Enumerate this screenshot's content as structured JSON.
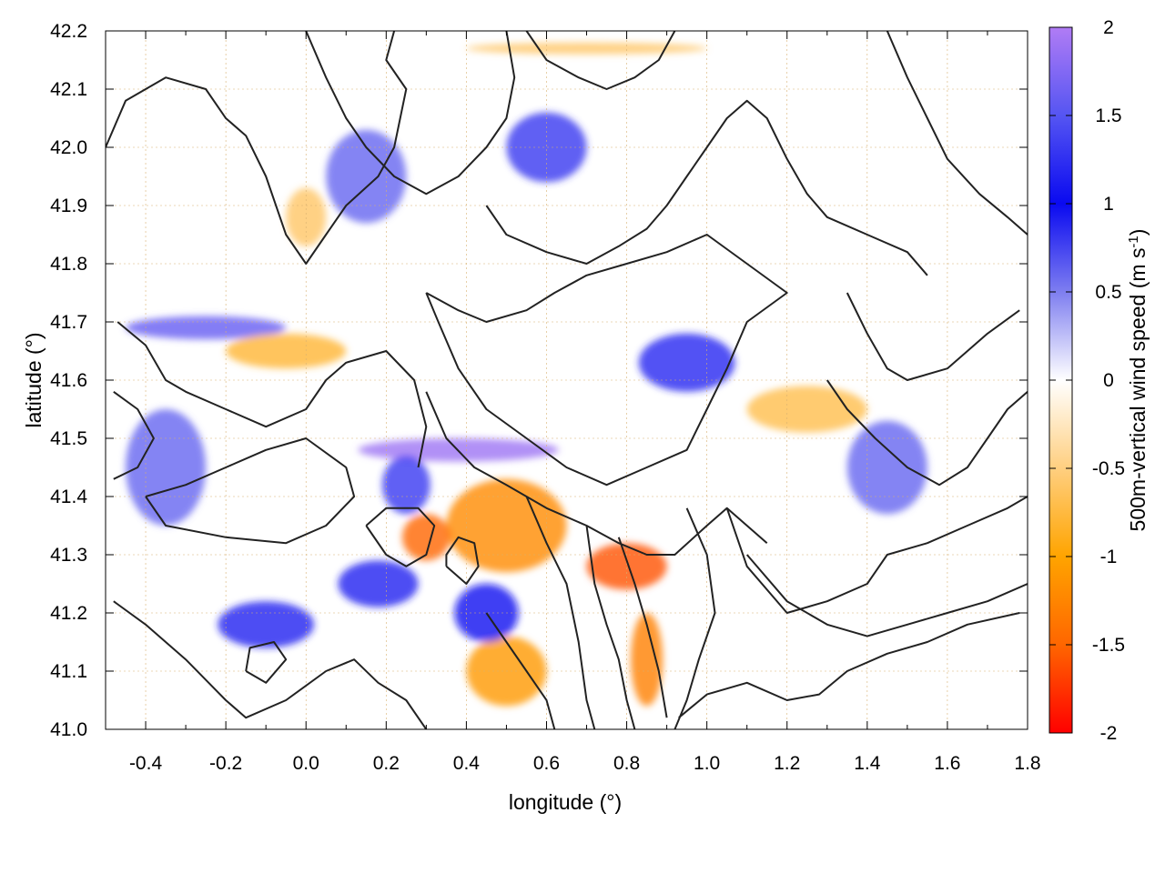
{
  "chart_data": {
    "type": "heatmap",
    "title": "",
    "xlabel": "longitude (°)",
    "ylabel": "latitude (°)",
    "xlim": [
      -0.5,
      1.8
    ],
    "ylim": [
      41.0,
      42.2
    ],
    "x_ticks": [
      "-0.4",
      "-0.2",
      "0.0",
      "0.2",
      "0.4",
      "0.6",
      "0.8",
      "1.0",
      "1.2",
      "1.4",
      "1.6",
      "1.8"
    ],
    "x_tick_values": [
      -0.4,
      -0.2,
      0.0,
      0.2,
      0.4,
      0.6,
      0.8,
      1.0,
      1.2,
      1.4,
      1.6,
      1.8
    ],
    "y_ticks": [
      "41.0",
      "41.1",
      "41.2",
      "41.3",
      "41.4",
      "41.5",
      "41.6",
      "41.7",
      "41.8",
      "41.9",
      "42.0",
      "42.1",
      "42.2"
    ],
    "y_tick_values": [
      41.0,
      41.1,
      41.2,
      41.3,
      41.4,
      41.5,
      41.6,
      41.7,
      41.8,
      41.9,
      42.0,
      42.1,
      42.2
    ],
    "grid": true,
    "colorbar": {
      "label_main": "500m-vertical wind speed (m s",
      "label_sup": "-1",
      "label_end": ")",
      "range": [
        -2,
        2
      ],
      "ticks": [
        "2",
        "1.5",
        "1",
        "0.5",
        "0",
        "-0.5",
        "-1",
        "-1.5",
        "-2"
      ],
      "tick_values": [
        2,
        1.5,
        1,
        0.5,
        0,
        -0.5,
        -1,
        -1.5,
        -2
      ],
      "stops": [
        {
          "value": 2,
          "color": "#b07cf5"
        },
        {
          "value": 1.5,
          "color": "#5555f2"
        },
        {
          "value": 1,
          "color": "#0a0af0"
        },
        {
          "value": 0.5,
          "color": "#7e7ef0"
        },
        {
          "value": 0,
          "color": "#ffffff"
        },
        {
          "value": -0.5,
          "color": "#ffcf80"
        },
        {
          "value": -1,
          "color": "#ffa400"
        },
        {
          "value": -1.5,
          "color": "#ff6600"
        },
        {
          "value": -2,
          "color": "#ff0000"
        }
      ]
    },
    "anomalies": [
      {
        "lon": 0.38,
        "lat": 41.48,
        "value": 1.9,
        "rlon": 0.25,
        "rlat": 0.02
      },
      {
        "lon": -0.25,
        "lat": 41.69,
        "value": 1.6,
        "rlon": 0.2,
        "rlat": 0.02
      },
      {
        "lon": 0.95,
        "lat": 41.63,
        "value": 1.2,
        "rlon": 0.12,
        "rlat": 0.05
      },
      {
        "lon": 0.5,
        "lat": 41.35,
        "value": -1.2,
        "rlon": 0.15,
        "rlat": 0.08
      },
      {
        "lon": 0.3,
        "lat": 41.33,
        "value": -1.5,
        "rlon": 0.06,
        "rlat": 0.04
      },
      {
        "lon": 0.25,
        "lat": 41.42,
        "value": 1.3,
        "rlon": 0.06,
        "rlat": 0.05
      },
      {
        "lon": 0.8,
        "lat": 41.28,
        "value": -1.6,
        "rlon": 0.1,
        "rlat": 0.04
      },
      {
        "lon": 0.85,
        "lat": 41.12,
        "value": -1.3,
        "rlon": 0.04,
        "rlat": 0.08
      },
      {
        "lon": 0.5,
        "lat": 41.1,
        "value": -1.1,
        "rlon": 0.1,
        "rlat": 0.06
      },
      {
        "lon": 0.45,
        "lat": 41.2,
        "value": 1.0,
        "rlon": 0.08,
        "rlat": 0.05
      },
      {
        "lon": 0.18,
        "lat": 41.25,
        "value": 0.9,
        "rlon": 0.1,
        "rlat": 0.04
      },
      {
        "lon": -0.1,
        "lat": 41.18,
        "value": 0.9,
        "rlon": 0.12,
        "rlat": 0.04
      },
      {
        "lon": -0.35,
        "lat": 41.45,
        "value": 0.6,
        "rlon": 0.1,
        "rlat": 0.1
      },
      {
        "lon": 1.25,
        "lat": 41.55,
        "value": -0.7,
        "rlon": 0.15,
        "rlat": 0.04
      },
      {
        "lon": 1.45,
        "lat": 41.45,
        "value": 0.6,
        "rlon": 0.1,
        "rlat": 0.08
      },
      {
        "lon": 0.6,
        "lat": 42.0,
        "value": 0.8,
        "rlon": 0.1,
        "rlat": 0.06
      },
      {
        "lon": 0.15,
        "lat": 41.95,
        "value": 0.6,
        "rlon": 0.1,
        "rlat": 0.08
      },
      {
        "lon": 0.7,
        "lat": 42.17,
        "value": -0.6,
        "rlon": 0.3,
        "rlat": 0.01
      },
      {
        "lon": -0.05,
        "lat": 41.65,
        "value": -0.8,
        "rlon": 0.15,
        "rlat": 0.03
      },
      {
        "lon": 0.0,
        "lat": 41.88,
        "value": -0.6,
        "rlon": 0.05,
        "rlat": 0.05
      }
    ],
    "contours": [
      [
        [
          -0.5,
          42.0
        ],
        [
          -0.45,
          42.08
        ],
        [
          -0.35,
          42.12
        ],
        [
          -0.25,
          42.1
        ],
        [
          -0.2,
          42.05
        ],
        [
          -0.15,
          42.02
        ],
        [
          -0.1,
          41.95
        ],
        [
          -0.05,
          41.85
        ],
        [
          0.0,
          41.8
        ],
        [
          0.05,
          41.85
        ],
        [
          0.1,
          41.9
        ],
        [
          0.18,
          41.95
        ],
        [
          0.22,
          42.0
        ],
        [
          0.25,
          42.1
        ],
        [
          0.2,
          42.15
        ],
        [
          0.22,
          42.2
        ]
      ],
      [
        [
          -0.47,
          41.7
        ],
        [
          -0.4,
          41.66
        ],
        [
          -0.35,
          41.6
        ],
        [
          -0.3,
          41.58
        ],
        [
          -0.2,
          41.55
        ],
        [
          -0.1,
          41.52
        ],
        [
          0.0,
          41.55
        ],
        [
          0.05,
          41.6
        ],
        [
          0.1,
          41.63
        ],
        [
          0.2,
          41.65
        ],
        [
          0.27,
          41.6
        ],
        [
          0.3,
          41.52
        ],
        [
          0.28,
          41.45
        ]
      ],
      [
        [
          -0.4,
          41.4
        ],
        [
          -0.35,
          41.35
        ],
        [
          -0.2,
          41.33
        ],
        [
          -0.05,
          41.32
        ],
        [
          0.05,
          41.35
        ],
        [
          0.12,
          41.4
        ],
        [
          0.1,
          41.45
        ],
        [
          0.0,
          41.5
        ],
        [
          -0.1,
          41.48
        ],
        [
          -0.2,
          41.45
        ],
        [
          -0.3,
          41.42
        ],
        [
          -0.4,
          41.4
        ]
      ],
      [
        [
          -0.48,
          41.22
        ],
        [
          -0.4,
          41.18
        ],
        [
          -0.3,
          41.12
        ],
        [
          -0.2,
          41.05
        ],
        [
          -0.15,
          41.02
        ],
        [
          -0.05,
          41.05
        ],
        [
          0.05,
          41.1
        ],
        [
          0.12,
          41.12
        ],
        [
          0.18,
          41.08
        ],
        [
          0.25,
          41.05
        ],
        [
          0.3,
          41.0
        ]
      ],
      [
        [
          0.3,
          41.58
        ],
        [
          0.35,
          41.5
        ],
        [
          0.42,
          41.45
        ],
        [
          0.5,
          41.42
        ],
        [
          0.6,
          41.38
        ],
        [
          0.7,
          41.35
        ],
        [
          0.78,
          41.32
        ],
        [
          0.85,
          41.3
        ],
        [
          0.92,
          41.3
        ],
        [
          1.0,
          41.35
        ],
        [
          1.05,
          41.38
        ],
        [
          1.1,
          41.35
        ],
        [
          1.15,
          41.32
        ]
      ],
      [
        [
          0.3,
          41.75
        ],
        [
          0.38,
          41.72
        ],
        [
          0.45,
          41.7
        ],
        [
          0.55,
          41.72
        ],
        [
          0.62,
          41.75
        ],
        [
          0.7,
          41.78
        ],
        [
          0.8,
          41.8
        ],
        [
          0.9,
          41.82
        ],
        [
          1.0,
          41.85
        ],
        [
          1.1,
          41.8
        ],
        [
          1.2,
          41.75
        ],
        [
          1.1,
          41.7
        ],
        [
          1.05,
          41.62
        ],
        [
          1.0,
          41.55
        ],
        [
          0.95,
          41.48
        ],
        [
          0.85,
          41.45
        ],
        [
          0.75,
          41.42
        ],
        [
          0.65,
          41.45
        ],
        [
          0.55,
          41.5
        ],
        [
          0.45,
          41.55
        ],
        [
          0.38,
          41.62
        ],
        [
          0.33,
          41.7
        ],
        [
          0.3,
          41.75
        ]
      ],
      [
        [
          0.45,
          41.9
        ],
        [
          0.5,
          41.85
        ],
        [
          0.6,
          41.82
        ],
        [
          0.7,
          41.8
        ],
        [
          0.78,
          41.83
        ],
        [
          0.85,
          41.86
        ],
        [
          0.9,
          41.9
        ],
        [
          0.95,
          41.95
        ],
        [
          1.0,
          42.0
        ],
        [
          1.05,
          42.05
        ],
        [
          1.1,
          42.08
        ],
        [
          1.15,
          42.05
        ],
        [
          1.2,
          41.98
        ],
        [
          1.25,
          41.92
        ],
        [
          1.3,
          41.88
        ],
        [
          1.4,
          41.85
        ],
        [
          1.5,
          41.82
        ],
        [
          1.55,
          41.78
        ]
      ],
      [
        [
          0.55,
          42.2
        ],
        [
          0.6,
          42.15
        ],
        [
          0.68,
          42.12
        ],
        [
          0.75,
          42.1
        ],
        [
          0.82,
          42.12
        ],
        [
          0.88,
          42.15
        ],
        [
          0.92,
          42.2
        ]
      ],
      [
        [
          0.7,
          41.35
        ],
        [
          0.72,
          41.25
        ],
        [
          0.75,
          41.18
        ],
        [
          0.78,
          41.12
        ],
        [
          0.8,
          41.05
        ],
        [
          0.82,
          41.0
        ]
      ],
      [
        [
          0.78,
          41.33
        ],
        [
          0.82,
          41.25
        ],
        [
          0.85,
          41.18
        ],
        [
          0.88,
          41.1
        ],
        [
          0.9,
          41.02
        ]
      ],
      [
        [
          0.95,
          41.38
        ],
        [
          1.0,
          41.3
        ],
        [
          1.02,
          41.2
        ],
        [
          0.98,
          41.12
        ],
        [
          0.95,
          41.05
        ],
        [
          0.92,
          41.0
        ]
      ],
      [
        [
          1.05,
          41.38
        ],
        [
          1.1,
          41.28
        ],
        [
          1.2,
          41.2
        ],
        [
          1.3,
          41.22
        ],
        [
          1.4,
          41.25
        ],
        [
          1.45,
          41.3
        ],
        [
          1.55,
          41.32
        ],
        [
          1.65,
          41.35
        ],
        [
          1.75,
          41.38
        ],
        [
          1.8,
          41.4
        ]
      ],
      [
        [
          1.1,
          41.3
        ],
        [
          1.2,
          41.22
        ],
        [
          1.3,
          41.18
        ],
        [
          1.4,
          41.16
        ],
        [
          1.5,
          41.18
        ],
        [
          1.6,
          41.2
        ],
        [
          1.7,
          41.22
        ],
        [
          1.8,
          41.25
        ]
      ],
      [
        [
          0.93,
          41.02
        ],
        [
          1.0,
          41.06
        ],
        [
          1.1,
          41.08
        ],
        [
          1.2,
          41.05
        ],
        [
          1.28,
          41.06
        ],
        [
          1.35,
          41.1
        ],
        [
          1.45,
          41.13
        ],
        [
          1.55,
          41.15
        ],
        [
          1.65,
          41.18
        ],
        [
          1.78,
          41.2
        ]
      ],
      [
        [
          1.3,
          41.6
        ],
        [
          1.35,
          41.55
        ],
        [
          1.42,
          41.5
        ],
        [
          1.5,
          41.45
        ],
        [
          1.58,
          41.42
        ],
        [
          1.65,
          41.45
        ],
        [
          1.7,
          41.5
        ],
        [
          1.75,
          41.55
        ],
        [
          1.8,
          41.58
        ]
      ],
      [
        [
          1.35,
          41.75
        ],
        [
          1.4,
          41.68
        ],
        [
          1.45,
          41.62
        ],
        [
          1.5,
          41.6
        ],
        [
          1.6,
          41.62
        ],
        [
          1.7,
          41.68
        ],
        [
          1.78,
          41.72
        ]
      ],
      [
        [
          1.45,
          42.2
        ],
        [
          1.5,
          42.12
        ],
        [
          1.55,
          42.05
        ],
        [
          1.6,
          41.98
        ],
        [
          1.68,
          41.92
        ],
        [
          1.75,
          41.88
        ],
        [
          1.8,
          41.85
        ]
      ],
      [
        [
          0.15,
          41.35
        ],
        [
          0.2,
          41.3
        ],
        [
          0.25,
          41.28
        ],
        [
          0.3,
          41.3
        ],
        [
          0.32,
          41.35
        ],
        [
          0.28,
          41.38
        ],
        [
          0.2,
          41.38
        ],
        [
          0.15,
          41.35
        ]
      ],
      [
        [
          0.35,
          41.28
        ],
        [
          0.4,
          41.25
        ],
        [
          0.43,
          41.28
        ],
        [
          0.42,
          41.32
        ],
        [
          0.38,
          41.33
        ],
        [
          0.35,
          41.3
        ],
        [
          0.35,
          41.28
        ]
      ],
      [
        [
          0.45,
          41.2
        ],
        [
          0.5,
          41.15
        ],
        [
          0.55,
          41.1
        ],
        [
          0.6,
          41.05
        ],
        [
          0.62,
          41.0
        ]
      ],
      [
        [
          0.55,
          41.4
        ],
        [
          0.6,
          41.32
        ],
        [
          0.65,
          41.25
        ],
        [
          0.68,
          41.15
        ],
        [
          0.7,
          41.05
        ],
        [
          0.72,
          41.0
        ]
      ],
      [
        [
          0.0,
          42.2
        ],
        [
          0.05,
          42.12
        ],
        [
          0.1,
          42.05
        ],
        [
          0.15,
          42.0
        ],
        [
          0.22,
          41.95
        ],
        [
          0.3,
          41.92
        ],
        [
          0.38,
          41.95
        ],
        [
          0.45,
          42.0
        ],
        [
          0.5,
          42.05
        ],
        [
          0.52,
          42.12
        ],
        [
          0.5,
          42.2
        ]
      ],
      [
        [
          -0.48,
          41.58
        ],
        [
          -0.42,
          41.55
        ],
        [
          -0.38,
          41.5
        ],
        [
          -0.42,
          41.45
        ],
        [
          -0.48,
          41.43
        ]
      ],
      [
        [
          -0.15,
          41.1
        ],
        [
          -0.1,
          41.08
        ],
        [
          -0.05,
          41.12
        ],
        [
          -0.08,
          41.15
        ],
        [
          -0.14,
          41.14
        ],
        [
          -0.15,
          41.1
        ]
      ]
    ]
  }
}
